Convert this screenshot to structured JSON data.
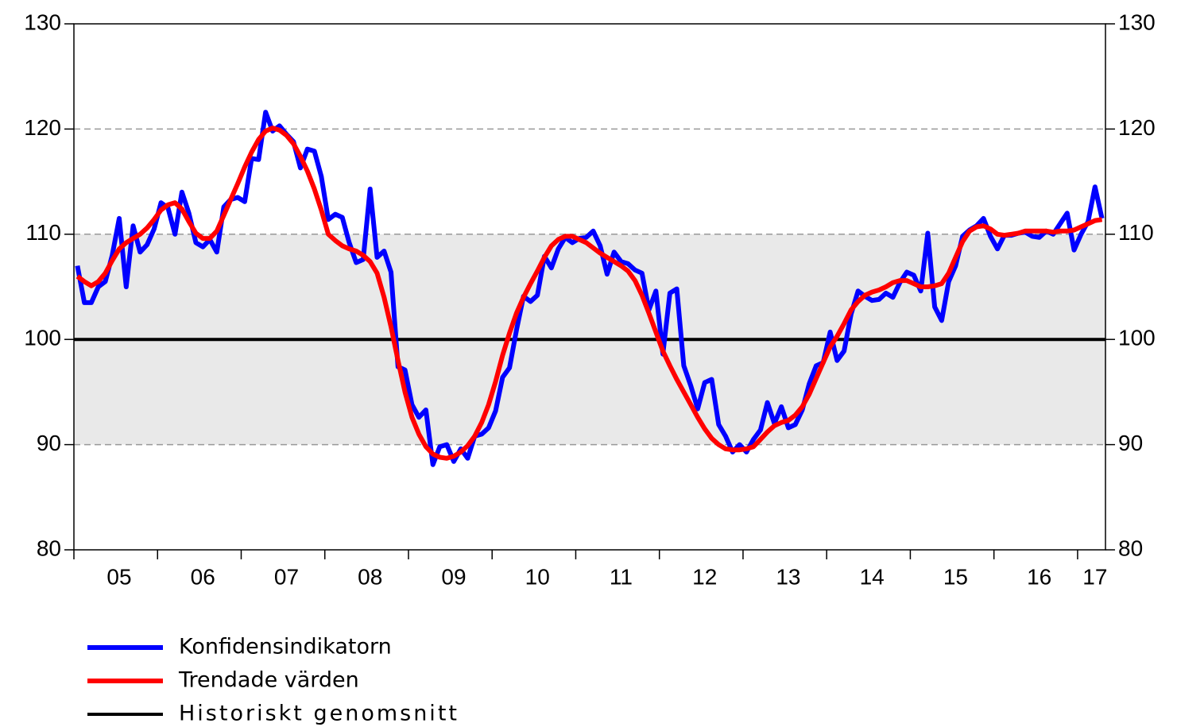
{
  "chart_data": {
    "type": "line",
    "categories": [
      null,
      null,
      null,
      null,
      null,
      null,
      "05",
      null,
      null,
      null,
      null,
      null,
      null,
      null,
      null,
      null,
      null,
      null,
      "06",
      null,
      null,
      null,
      null,
      null,
      null,
      null,
      null,
      null,
      null,
      null,
      "07",
      null,
      null,
      null,
      null,
      null,
      null,
      null,
      null,
      null,
      null,
      null,
      "08",
      null,
      null,
      null,
      null,
      null,
      null,
      null,
      null,
      null,
      null,
      null,
      "09",
      null,
      null,
      null,
      null,
      null,
      null,
      null,
      null,
      null,
      null,
      null,
      "10",
      null,
      null,
      null,
      null,
      null,
      null,
      null,
      null,
      null,
      null,
      null,
      "11",
      null,
      null,
      null,
      null,
      null,
      null,
      null,
      null,
      null,
      null,
      null,
      "12",
      null,
      null,
      null,
      null,
      null,
      null,
      null,
      null,
      null,
      null,
      null,
      "13",
      null,
      null,
      null,
      null,
      null,
      null,
      null,
      null,
      null,
      null,
      null,
      "14",
      null,
      null,
      null,
      null,
      null,
      null,
      null,
      null,
      null,
      null,
      null,
      "15",
      null,
      null,
      null,
      null,
      null,
      null,
      null,
      null,
      null,
      null,
      null,
      "16",
      null,
      null,
      null,
      null,
      null,
      null,
      null,
      "17",
      null
    ],
    "series": [
      {
        "name": "Konfidensindikatorn",
        "color": "#0000ff",
        "values": [
          107,
          103.5,
          103.5,
          105,
          105.5,
          108,
          111.5,
          105,
          110.8,
          108.3,
          109,
          110.5,
          113,
          112.5,
          110,
          114,
          112,
          109.2,
          108.8,
          109.5,
          108.3,
          112.6,
          113.3,
          113.5,
          113.1,
          117.2,
          117.1,
          121.6,
          119.8,
          120.3,
          119.5,
          118.8,
          116.3,
          118.1,
          117.9,
          115.5,
          111.4,
          111.9,
          111.6,
          109.2,
          107.3,
          107.6,
          114.3,
          107.8,
          108.4,
          106.4,
          97.4,
          97.1,
          93.8,
          92.6,
          93.3,
          88.1,
          89.8,
          90,
          88.4,
          89.6,
          88.7,
          90.8,
          91,
          91.6,
          93.2,
          96.4,
          97.3,
          100.9,
          104.1,
          103.6,
          104.2,
          107.9,
          106.8,
          108.6,
          109.7,
          109.2,
          109.6,
          109.7,
          110.3,
          108.9,
          106.2,
          108.3,
          107.4,
          107.2,
          106.6,
          106.3,
          102.8,
          104.6,
          98.6,
          104.4,
          104.8,
          97.5,
          95.6,
          93.4,
          95.9,
          96.2,
          91.9,
          90.8,
          89.3,
          90,
          89.3,
          90.5,
          91.4,
          94,
          92,
          93.6,
          91.6,
          91.9,
          93.3,
          95.8,
          97.5,
          97.8,
          100.7,
          98,
          98.9,
          102.4,
          104.6,
          104.1,
          103.7,
          103.8,
          104.4,
          104,
          105.4,
          106.4,
          106.1,
          104.6,
          110.1,
          103.1,
          101.8,
          105.5,
          107,
          109.8,
          110.4,
          110.8,
          111.5,
          109.8,
          108.6,
          109.9,
          109.9,
          110.1,
          110.2,
          109.8,
          109.7,
          110.3,
          110,
          111,
          112,
          108.5,
          110,
          111.2,
          114.5,
          111.5
        ]
      },
      {
        "name": "Trendade värden",
        "color": "#ff0000",
        "values": [
          106,
          105.5,
          105.1,
          105.5,
          106.3,
          107.5,
          108.6,
          109.2,
          109.6,
          110,
          110.6,
          111.4,
          112.3,
          112.8,
          113,
          112.4,
          111.2,
          110.1,
          109.6,
          109.6,
          110.3,
          111.8,
          113.3,
          114.8,
          116.4,
          117.8,
          119,
          119.8,
          120.1,
          119.9,
          119.4,
          118.6,
          117.4,
          116,
          114.3,
          112.3,
          110,
          109.4,
          108.9,
          108.6,
          108.4,
          108,
          107.4,
          106.3,
          104,
          101.2,
          98,
          95,
          92.6,
          91,
          89.8,
          89.1,
          88.8,
          88.7,
          88.9,
          89.3,
          89.9,
          90.8,
          92.1,
          93.8,
          96,
          98.5,
          100.6,
          102.5,
          104,
          105.3,
          106.5,
          107.8,
          108.9,
          109.5,
          109.8,
          109.8,
          109.5,
          109.2,
          108.7,
          108.2,
          107.8,
          107.4,
          107,
          106.5,
          105.6,
          104.2,
          102.5,
          100.7,
          98.9,
          97.5,
          96.2,
          95,
          93.8,
          92.6,
          91.5,
          90.6,
          90,
          89.6,
          89.5,
          89.5,
          89.6,
          89.8,
          90.5,
          91.2,
          91.8,
          92.1,
          92.3,
          92.8,
          93.6,
          94.8,
          96.3,
          97.8,
          99.3,
          100.3,
          101.5,
          102.8,
          103.6,
          104.2,
          104.5,
          104.7,
          105,
          105.4,
          105.6,
          105.6,
          105.3,
          105,
          105,
          105.1,
          105.3,
          106.3,
          107.8,
          109.3,
          110.3,
          110.7,
          110.8,
          110.5,
          110,
          109.9,
          110,
          110.1,
          110.3,
          110.3,
          110.3,
          110.3,
          110.2,
          110.3,
          110.3,
          110.4,
          110.7,
          111,
          111.3,
          111.4
        ]
      }
    ],
    "reference_line": {
      "name": "Historiskt genomsnitt",
      "color": "#000000",
      "value": 100
    },
    "band": [
      90,
      110
    ],
    "ylim": [
      80,
      130
    ],
    "yticks": [
      80,
      90,
      100,
      110,
      120,
      130
    ],
    "grid_lines": [
      90,
      110,
      120
    ]
  }
}
